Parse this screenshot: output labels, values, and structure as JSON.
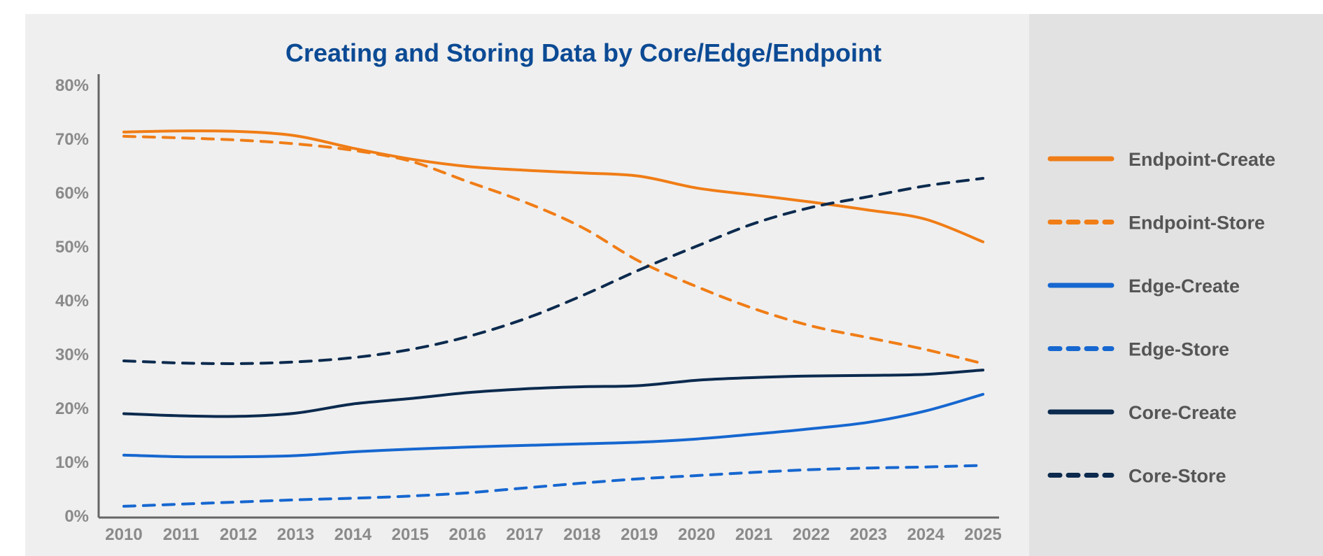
{
  "chart_data": {
    "type": "line",
    "title": "Creating and Storing Data by Core/Edge/Endpoint",
    "xlabel": "",
    "ylabel": "",
    "x": [
      2010,
      2011,
      2012,
      2013,
      2014,
      2015,
      2016,
      2017,
      2018,
      2019,
      2020,
      2021,
      2022,
      2023,
      2024,
      2025
    ],
    "xtick_labels": [
      "2010",
      "2011",
      "2012",
      "2013",
      "2014",
      "2015",
      "2016",
      "2017",
      "2018",
      "2019",
      "2020",
      "2021",
      "2022",
      "2023",
      "2024",
      "2025"
    ],
    "ylim": [
      0,
      80
    ],
    "yticks": [
      0,
      10,
      20,
      30,
      40,
      50,
      60,
      70,
      80
    ],
    "ytick_labels": [
      "0%",
      "10%",
      "20%",
      "30%",
      "40%",
      "50%",
      "60%",
      "70%",
      "80%"
    ],
    "grid": false,
    "legend_position": "right",
    "series": [
      {
        "name": "Endpoint-Create",
        "name_bold": "Endpoint",
        "name_rest": "-Create",
        "color": "#f07d16",
        "dashed": false,
        "values": [
          71.2,
          71.4,
          71.3,
          70.5,
          68.2,
          66.2,
          64.8,
          64.1,
          63.6,
          63.0,
          60.8,
          59.5,
          58.2,
          56.7,
          55.0,
          50.8
        ]
      },
      {
        "name": "Endpoint-Store",
        "name_bold": "Endpoint",
        "name_rest": "-Store",
        "color": "#f07d16",
        "dashed": true,
        "values": [
          70.4,
          70.1,
          69.7,
          69.0,
          67.8,
          65.8,
          62.0,
          58.2,
          53.5,
          47.2,
          42.5,
          38.4,
          35.2,
          33.0,
          30.8,
          28.2
        ]
      },
      {
        "name": "Edge-Create",
        "name_bold": "Edge",
        "name_rest": "-Create",
        "color": "#1667d0",
        "dashed": false,
        "values": [
          11.2,
          10.9,
          10.9,
          11.1,
          11.8,
          12.3,
          12.7,
          13.0,
          13.3,
          13.6,
          14.2,
          15.1,
          16.1,
          17.3,
          19.4,
          22.5
        ]
      },
      {
        "name": "Edge-Store",
        "name_bold": "Edge",
        "name_rest": "-Store",
        "color": "#1667d0",
        "dashed": true,
        "values": [
          1.7,
          2.1,
          2.5,
          2.9,
          3.2,
          3.6,
          4.2,
          5.1,
          6.0,
          6.8,
          7.4,
          8.0,
          8.5,
          8.8,
          9.0,
          9.3
        ]
      },
      {
        "name": "Core-Create",
        "name_bold": "Core",
        "name_rest": "-Create",
        "color": "#0b2a4e",
        "dashed": false,
        "values": [
          18.9,
          18.5,
          18.4,
          19.0,
          20.7,
          21.7,
          22.8,
          23.5,
          23.9,
          24.1,
          25.1,
          25.6,
          25.9,
          26.0,
          26.2,
          27.0
        ]
      },
      {
        "name": "Core-Store",
        "name_bold": "Core",
        "name_rest": "-Store",
        "color": "#0b2a4e",
        "dashed": true,
        "values": [
          28.7,
          28.3,
          28.2,
          28.5,
          29.3,
          30.8,
          33.2,
          36.5,
          40.8,
          45.6,
          50.0,
          54.2,
          57.2,
          59.2,
          61.2,
          62.6
        ]
      }
    ]
  }
}
